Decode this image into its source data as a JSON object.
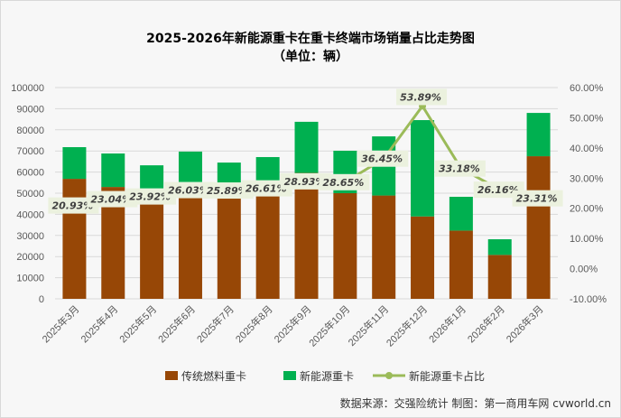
{
  "chart_data": {
    "type": "bar",
    "title": "2025-2026年新能源重卡在重卡终端市场销量占比走势图",
    "subtitle": "（单位：辆）",
    "categories": [
      "2025年3月",
      "2025年4月",
      "2025年5月",
      "2025年6月",
      "2025年7月",
      "2025年8月",
      "2025年9月",
      "2025年10月",
      "2025年11月",
      "2025年12月",
      "2026年1月",
      "2026年2月",
      "2026年3月"
    ],
    "series": [
      {
        "name": "传统燃料重卡",
        "type": "stacked-bar",
        "color": "#974706",
        "values": [
          56800,
          52950,
          48100,
          51600,
          47800,
          49200,
          59600,
          50000,
          48900,
          39000,
          32300,
          20800,
          67500
        ]
      },
      {
        "name": "新能源重卡",
        "type": "stacked-bar",
        "color": "#00b050",
        "values": [
          15000,
          15850,
          15100,
          18100,
          16700,
          17900,
          24200,
          20100,
          28000,
          45600,
          16000,
          7400,
          20500
        ]
      },
      {
        "name": "新能源重卡占比",
        "type": "line",
        "axis": "right",
        "color": "#9bbb59",
        "values": [
          20.93,
          23.04,
          23.92,
          26.03,
          25.89,
          26.61,
          28.93,
          28.65,
          36.45,
          53.89,
          33.18,
          26.16,
          23.31
        ],
        "labels": [
          "20.93%",
          "23.04%",
          "23.92%",
          "26.03%",
          "25.89%",
          "26.61%",
          "28.93%",
          "28.65%",
          "36.45%",
          "53.89%",
          "33.18%",
          "26.16%",
          "23.31%"
        ]
      }
    ],
    "ylim": [
      0,
      100000
    ],
    "yticks": [
      "0",
      "10000",
      "20000",
      "30000",
      "40000",
      "50000",
      "60000",
      "70000",
      "80000",
      "90000",
      "100000"
    ],
    "y2lim": [
      -10,
      60
    ],
    "y2ticks": [
      "-10.00%",
      "0.00%",
      "10.00%",
      "20.00%",
      "30.00%",
      "40.00%",
      "50.00%",
      "60.00%"
    ],
    "grid": true,
    "legend": "bottom",
    "source": "数据来源：交强险统计  制图：第一商用车网 cvworld.cn"
  }
}
